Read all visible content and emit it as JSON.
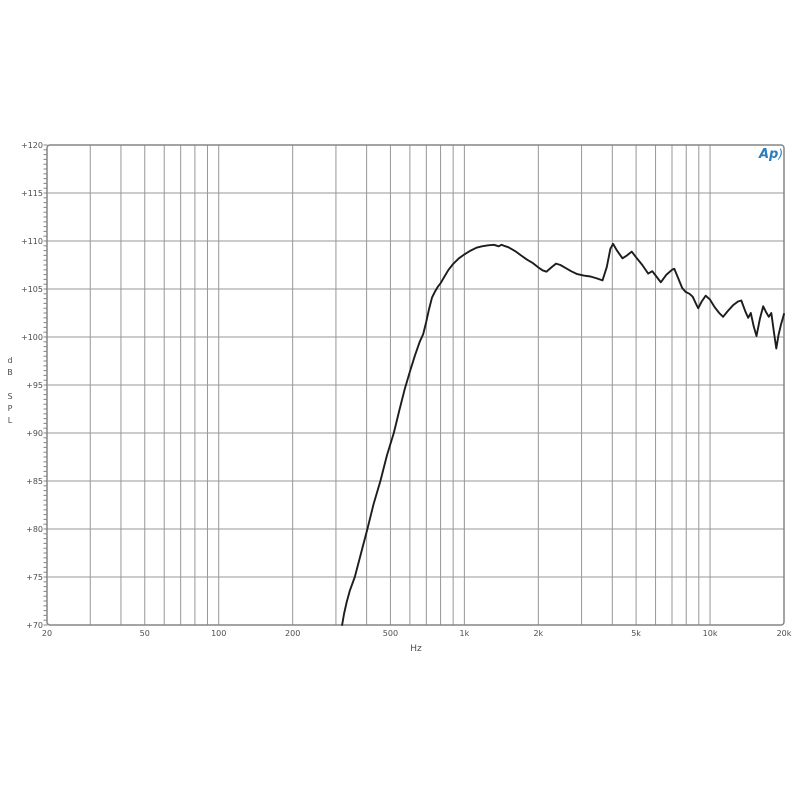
{
  "logo": {
    "text": "Ap",
    "arc": ")",
    "color": "#2b7dbb"
  },
  "chart_data": {
    "type": "line",
    "title": "",
    "xlabel": "Hz",
    "ylabel": "dB SPL",
    "x_scale": "log",
    "xlim": [
      20,
      20000
    ],
    "ylim": [
      70,
      120
    ],
    "y_major_step": 5,
    "y_minor_step": 0.5,
    "grid": true,
    "legend": "none",
    "y_ticks": [
      {
        "value": 120,
        "label": "+120"
      },
      {
        "value": 115,
        "label": "+115"
      },
      {
        "value": 110,
        "label": "+110"
      },
      {
        "value": 105,
        "label": "+105"
      },
      {
        "value": 100,
        "label": "+100"
      },
      {
        "value": 95,
        "label": "+95"
      },
      {
        "value": 90,
        "label": "+90"
      },
      {
        "value": 85,
        "label": "+85"
      },
      {
        "value": 80,
        "label": "+80"
      },
      {
        "value": 75,
        "label": "+75"
      },
      {
        "value": 70,
        "label": "+70"
      }
    ],
    "x_ticks": [
      {
        "value": 20,
        "label": "20"
      },
      {
        "value": 50,
        "label": "50"
      },
      {
        "value": 100,
        "label": "100"
      },
      {
        "value": 200,
        "label": "200"
      },
      {
        "value": 500,
        "label": "500"
      },
      {
        "value": 1000,
        "label": "1k"
      },
      {
        "value": 2000,
        "label": "2k"
      },
      {
        "value": 5000,
        "label": "5k"
      },
      {
        "value": 10000,
        "label": "10k"
      },
      {
        "value": 20000,
        "label": "20k"
      }
    ],
    "x_gridlines": [
      20,
      30,
      40,
      50,
      60,
      70,
      80,
      90,
      100,
      200,
      300,
      400,
      500,
      600,
      700,
      800,
      900,
      1000,
      2000,
      3000,
      4000,
      5000,
      6000,
      7000,
      8000,
      9000,
      10000,
      20000
    ],
    "colors": {
      "grid": "#979797",
      "frame": "#858585",
      "curve": "#1d1d1d",
      "labels": "#4d4d4d"
    },
    "series": [
      {
        "name": "frequency-response",
        "points": [
          [
            318,
            70
          ],
          [
            324,
            71.2
          ],
          [
            332,
            72.4
          ],
          [
            342,
            73.6
          ],
          [
            358,
            75
          ],
          [
            378,
            77.3
          ],
          [
            403,
            80
          ],
          [
            427,
            82.6
          ],
          [
            455,
            85
          ],
          [
            484,
            87.7
          ],
          [
            516,
            90
          ],
          [
            543,
            92.3
          ],
          [
            572,
            94.6
          ],
          [
            600,
            96.4
          ],
          [
            628,
            98
          ],
          [
            658,
            99.5
          ],
          [
            680,
            100.3
          ],
          [
            700,
            101.6
          ],
          [
            718,
            102.9
          ],
          [
            738,
            104.1
          ],
          [
            758,
            104.7
          ],
          [
            778,
            105.2
          ],
          [
            800,
            105.6
          ],
          [
            830,
            106.3
          ],
          [
            862,
            107
          ],
          [
            900,
            107.6
          ],
          [
            950,
            108.2
          ],
          [
            1000,
            108.6
          ],
          [
            1060,
            109
          ],
          [
            1120,
            109.3
          ],
          [
            1180,
            109.45
          ],
          [
            1250,
            109.55
          ],
          [
            1320,
            109.6
          ],
          [
            1380,
            109.45
          ],
          [
            1415,
            109.6
          ],
          [
            1450,
            109.5
          ],
          [
            1510,
            109.35
          ],
          [
            1560,
            109.15
          ],
          [
            1620,
            108.9
          ],
          [
            1700,
            108.5
          ],
          [
            1800,
            108.05
          ],
          [
            1900,
            107.7
          ],
          [
            2000,
            107.25
          ],
          [
            2080,
            106.95
          ],
          [
            2160,
            106.8
          ],
          [
            2260,
            107.25
          ],
          [
            2360,
            107.65
          ],
          [
            2460,
            107.5
          ],
          [
            2580,
            107.2
          ],
          [
            2720,
            106.85
          ],
          [
            2880,
            106.55
          ],
          [
            3060,
            106.4
          ],
          [
            3260,
            106.3
          ],
          [
            3460,
            106.1
          ],
          [
            3650,
            105.9
          ],
          [
            3800,
            107.3
          ],
          [
            3930,
            109.2
          ],
          [
            4030,
            109.7
          ],
          [
            4180,
            109
          ],
          [
            4400,
            108.2
          ],
          [
            4590,
            108.5
          ],
          [
            4800,
            108.9
          ],
          [
            5000,
            108.3
          ],
          [
            5300,
            107.5
          ],
          [
            5600,
            106.6
          ],
          [
            5820,
            106.85
          ],
          [
            6050,
            106.3
          ],
          [
            6300,
            105.7
          ],
          [
            6650,
            106.5
          ],
          [
            7000,
            107
          ],
          [
            7150,
            107.1
          ],
          [
            7400,
            106.2
          ],
          [
            7700,
            105.1
          ],
          [
            7950,
            104.7
          ],
          [
            8250,
            104.5
          ],
          [
            8500,
            104.2
          ],
          [
            8750,
            103.5
          ],
          [
            8950,
            103
          ],
          [
            9250,
            103.7
          ],
          [
            9600,
            104.3
          ],
          [
            10000,
            103.9
          ],
          [
            10450,
            103.1
          ],
          [
            10900,
            102.5
          ],
          [
            11300,
            102.1
          ],
          [
            11800,
            102.7
          ],
          [
            12400,
            103.3
          ],
          [
            13000,
            103.7
          ],
          [
            13400,
            103.8
          ],
          [
            13900,
            102.7
          ],
          [
            14300,
            102
          ],
          [
            14650,
            102.5
          ],
          [
            15050,
            101.1
          ],
          [
            15450,
            100.1
          ],
          [
            15950,
            101.9
          ],
          [
            16450,
            103.2
          ],
          [
            16900,
            102.6
          ],
          [
            17350,
            102.1
          ],
          [
            17750,
            102.5
          ],
          [
            18250,
            100.3
          ],
          [
            18600,
            98.8
          ],
          [
            19000,
            100.2
          ],
          [
            19450,
            101.3
          ],
          [
            20000,
            102.4
          ]
        ]
      }
    ]
  }
}
